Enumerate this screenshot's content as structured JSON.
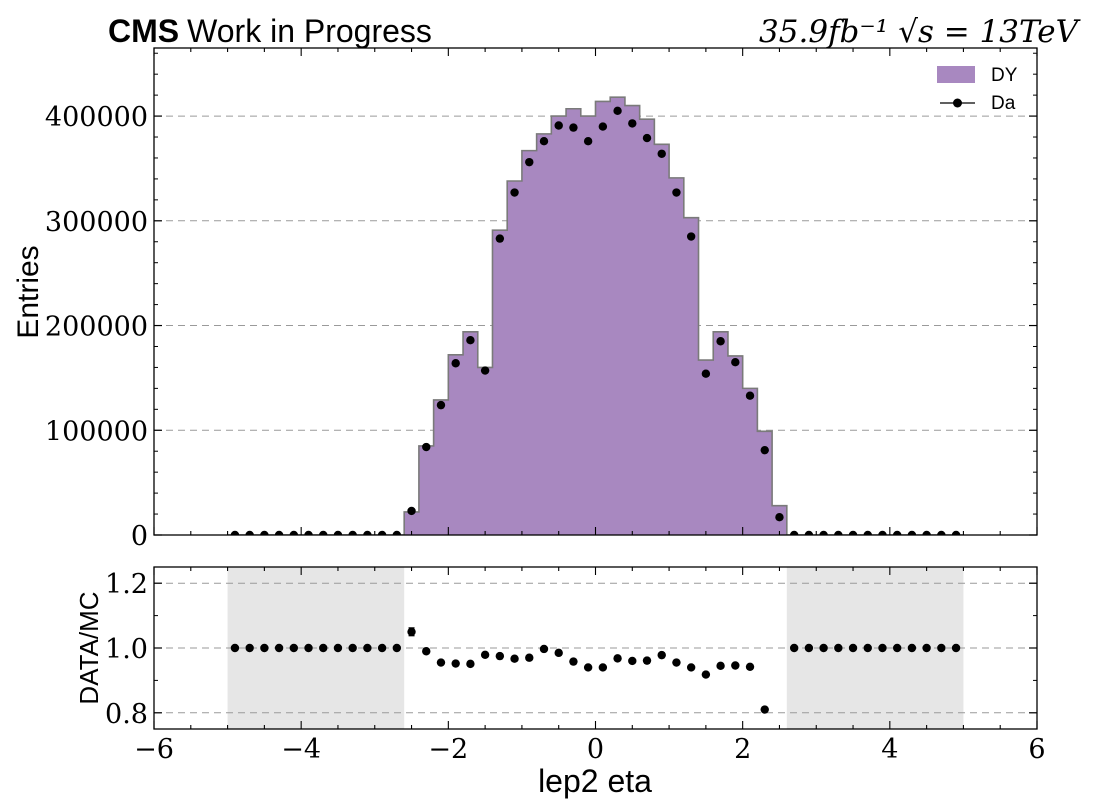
{
  "header": {
    "experiment": "CMS",
    "status": "Work in Progress",
    "lumi_text": "35.9fb⁻¹",
    "sqrt": "√",
    "energy_text": "s = 13TeV"
  },
  "colors": {
    "dy_fill": "#a888c0",
    "dy_edge": "#7a7a7a",
    "data": "#000000",
    "unc_band": "#e6e6e6",
    "grid": "#9a9a9a"
  },
  "chart_data": [
    {
      "type": "bar",
      "panel": "main",
      "ylabel": "Entries",
      "xlim": [
        -6,
        6
      ],
      "ylim": [
        0,
        465000
      ],
      "yticks": [
        0,
        100000,
        200000,
        300000,
        400000
      ],
      "grid": "horizontal dashed",
      "legend": {
        "placement": "top-right",
        "entries": [
          {
            "label": "DY",
            "kind": "fill"
          },
          {
            "label": "Da",
            "kind": "marker"
          }
        ]
      },
      "bin_edges": [
        -5.0,
        -4.8,
        -4.6,
        -4.4,
        -4.2,
        -4.0,
        -3.8,
        -3.6,
        -3.4,
        -3.2,
        -3.0,
        -2.8,
        -2.6,
        -2.4,
        -2.2,
        -2.0,
        -1.8,
        -1.6,
        -1.4,
        -1.2,
        -1.0,
        -0.8,
        -0.6,
        -0.4,
        -0.2,
        0.0,
        0.2,
        0.4,
        0.6,
        0.8,
        1.0,
        1.2,
        1.4,
        1.6,
        1.8,
        2.0,
        2.2,
        2.4,
        2.6,
        2.8,
        3.0,
        3.2,
        3.4,
        3.6,
        3.8,
        4.0,
        4.2,
        4.4,
        4.6,
        4.8,
        5.0
      ],
      "series": [
        {
          "name": "DY",
          "style": "filled step histogram",
          "values": [
            0,
            0,
            0,
            0,
            0,
            0,
            0,
            0,
            0,
            0,
            0,
            0,
            22000,
            85000,
            129000,
            172000,
            194000,
            160000,
            291000,
            338000,
            367000,
            383000,
            400000,
            407000,
            400000,
            414000,
            418000,
            410000,
            397000,
            373000,
            341000,
            303000,
            167000,
            194000,
            171000,
            140000,
            99000,
            28000,
            0,
            0,
            0,
            0,
            0,
            0,
            0,
            0,
            0,
            0,
            0,
            0
          ]
        },
        {
          "name": "Da",
          "style": "points",
          "x": [
            -4.9,
            -4.7,
            -4.5,
            -4.3,
            -4.1,
            -3.9,
            -3.7,
            -3.5,
            -3.3,
            -3.1,
            -2.9,
            -2.7,
            -2.5,
            -2.3,
            -2.1,
            -1.9,
            -1.7,
            -1.5,
            -1.3,
            -1.1,
            -0.9,
            -0.7,
            -0.5,
            -0.3,
            -0.1,
            0.1,
            0.3,
            0.5,
            0.7,
            0.9,
            1.1,
            1.3,
            1.5,
            1.7,
            1.9,
            2.1,
            2.3,
            2.5,
            2.7,
            2.9,
            3.1,
            3.3,
            3.5,
            3.7,
            3.9,
            4.1,
            4.3,
            4.5,
            4.7,
            4.9
          ],
          "values": [
            0,
            0,
            0,
            0,
            0,
            0,
            0,
            0,
            0,
            0,
            0,
            0,
            23000,
            84000,
            124000,
            164000,
            186000,
            157000,
            283000,
            327000,
            356000,
            376000,
            391000,
            389000,
            376000,
            390000,
            405000,
            393000,
            379000,
            364000,
            327000,
            285000,
            154000,
            185000,
            165000,
            133000,
            81000,
            17000,
            0,
            0,
            0,
            0,
            0,
            0,
            0,
            0,
            0,
            0,
            0,
            0
          ]
        }
      ]
    },
    {
      "type": "scatter",
      "panel": "ratio",
      "xlabel": "lep2 eta",
      "ylabel": "DATA/MC",
      "xlim": [
        -6,
        6
      ],
      "ylim": [
        0.75,
        1.25
      ],
      "xticks": [
        -6,
        -4,
        -2,
        0,
        2,
        4,
        6
      ],
      "yticks": [
        0.8,
        1.0,
        1.2
      ],
      "grid": "horizontal dashed",
      "shaded_x_ranges": [
        [
          -5.0,
          -2.6
        ],
        [
          2.6,
          5.0
        ]
      ],
      "series": [
        {
          "name": "",
          "x": [
            -4.9,
            -4.7,
            -4.5,
            -4.3,
            -4.1,
            -3.9,
            -3.7,
            -3.5,
            -3.3,
            -3.1,
            -2.9,
            -2.7,
            -2.5,
            -2.3,
            -2.1,
            -1.9,
            -1.7,
            -1.5,
            -1.3,
            -1.1,
            -0.9,
            -0.7,
            -0.5,
            -0.3,
            -0.1,
            0.1,
            0.3,
            0.5,
            0.7,
            0.9,
            1.1,
            1.3,
            1.5,
            1.7,
            1.9,
            2.1,
            2.3,
            2.7,
            2.9,
            3.1,
            3.3,
            3.5,
            3.7,
            3.9,
            4.1,
            4.3,
            4.5,
            4.7,
            4.9
          ],
          "values": [
            1.0,
            1.0,
            1.0,
            1.0,
            1.0,
            1.0,
            1.0,
            1.0,
            1.0,
            1.0,
            1.0,
            1.0,
            1.05,
            0.99,
            0.955,
            0.952,
            0.951,
            0.979,
            0.975,
            0.967,
            0.97,
            0.997,
            0.985,
            0.958,
            0.94,
            0.94,
            0.968,
            0.96,
            0.961,
            0.978,
            0.955,
            0.94,
            0.918,
            0.945,
            0.946,
            0.942,
            0.81,
            1.0,
            1.0,
            1.0,
            1.0,
            1.0,
            1.0,
            1.0,
            1.0,
            1.0,
            1.0,
            1.0,
            1.0
          ],
          "errors": [
            0,
            0,
            0,
            0,
            0,
            0,
            0,
            0,
            0,
            0,
            0,
            0,
            0.012,
            0.005,
            0.004,
            0.003,
            0.003,
            0.003,
            0.002,
            0.002,
            0.002,
            0.002,
            0.002,
            0.002,
            0.002,
            0.002,
            0.002,
            0.002,
            0.002,
            0.002,
            0.002,
            0.002,
            0.003,
            0.003,
            0.003,
            0.003,
            0.004,
            0,
            0,
            0,
            0,
            0,
            0,
            0,
            0,
            0,
            0,
            0,
            0
          ]
        }
      ]
    }
  ]
}
